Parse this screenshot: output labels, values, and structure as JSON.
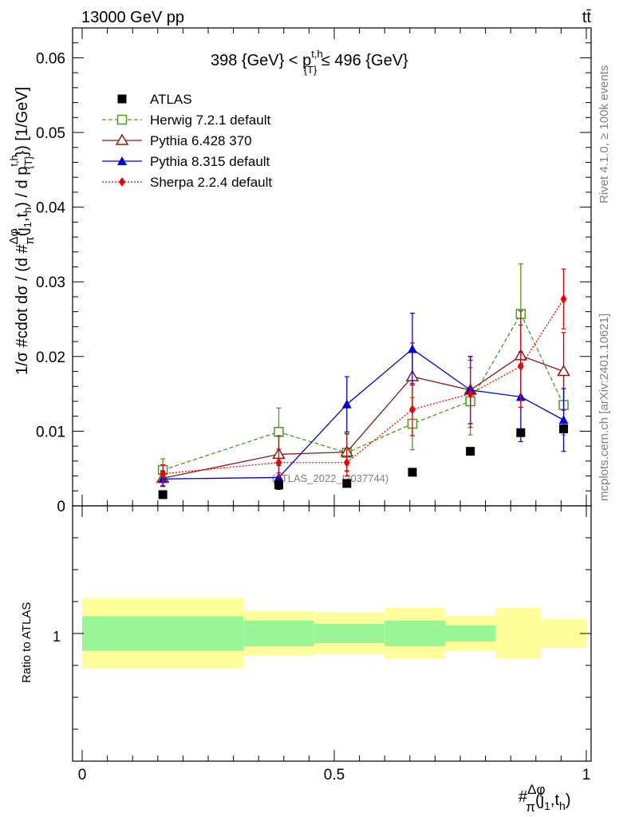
{
  "header": {
    "left": "13000 GeV pp",
    "right": "tt̄",
    "rivet_label": "Rivet 4.1.0, ≥ 100k events",
    "mcplots_label": "mcplots.cern.ch [arXiv:2401.10621]"
  },
  "chart_data": {
    "type": "scatter",
    "title": "398 {GeV} < p_{T}^{t,h} ≤ 496 {GeV}",
    "title_parts": {
      "pre": "398 {GeV} < p",
      "sup": "t,h",
      "sub": "{T}",
      "post": " ≤ 496 {GeV}"
    },
    "ylabel": "1/σ #cdot dσ / (d #Δφ/π(j1,th) / d pT^{t,h}) [1/GeV]",
    "ylabel_parts": {
      "a": "1/σ #cdot dσ / (d #",
      "frac_num": "Δφ",
      "frac_den": "π",
      "b": "(j",
      "b_sub": "1",
      "c": ",t",
      "c_sub": "h",
      "d": ") / d p",
      "d_sup": "t,h",
      "d_sub": "{T}",
      "e": "}) [1/GeV]"
    },
    "xlabel_parts": {
      "pre": "#",
      "frac_num": "Δφ",
      "frac_den": "π",
      "a": "(j",
      "a_sub": "1",
      "b": ",t",
      "b_sub": "h",
      "c": ")"
    },
    "watermark": "(ATLAS_2022_I2037744)",
    "xlim": [
      0,
      1
    ],
    "ylim": [
      0,
      0.064
    ],
    "x_ticks": [
      0,
      0.5,
      1
    ],
    "x_tick_labels": [
      "0",
      "0.5",
      "1"
    ],
    "y_ticks": [
      0,
      0.01,
      0.02,
      0.03,
      0.04,
      0.05,
      0.06
    ],
    "y_tick_labels": [
      "0",
      "0.01",
      "0.02",
      "0.03",
      "0.04",
      "0.05",
      "0.06"
    ],
    "legend_position": "top-left",
    "series": [
      {
        "name": "ATLAS",
        "color": "#000000",
        "marker": "square-filled",
        "line": "none",
        "x": [
          0.16,
          0.39,
          0.525,
          0.655,
          0.77,
          0.87,
          0.955
        ],
        "y": [
          0.0015,
          0.0028,
          0.003,
          0.0045,
          0.0073,
          0.0098,
          0.0103
        ],
        "err": [
          0,
          0,
          0,
          0,
          0,
          0,
          0
        ]
      },
      {
        "name": "Herwig 7.2.1 default",
        "color": "#4c9a16",
        "marker": "square-open",
        "line": "dashed",
        "x": [
          0.16,
          0.39,
          0.525,
          0.655,
          0.77,
          0.87,
          0.955
        ],
        "y": [
          0.0048,
          0.0099,
          0.0071,
          0.011,
          0.014,
          0.0257,
          0.0135
        ],
        "err": [
          0.0015,
          0.0032,
          0.0025,
          0.0035,
          0.0045,
          0.0067,
          0.004
        ]
      },
      {
        "name": "Pythia 6.428 370",
        "color": "#8b1a1a",
        "marker": "triangle-open",
        "line": "solid",
        "x": [
          0.16,
          0.39,
          0.525,
          0.655,
          0.77,
          0.87,
          0.955
        ],
        "y": [
          0.0037,
          0.0069,
          0.0072,
          0.0173,
          0.0155,
          0.0201,
          0.018
        ],
        "err": [
          0.001,
          0.0025,
          0.0025,
          0.0045,
          0.0045,
          0.006,
          0.0052
        ]
      },
      {
        "name": "Pythia 8.315 default",
        "color": "#0000dd",
        "marker": "triangle-filled",
        "line": "solid",
        "x": [
          0.16,
          0.39,
          0.525,
          0.655,
          0.77,
          0.87,
          0.955
        ],
        "y": [
          0.0036,
          0.0038,
          0.0136,
          0.021,
          0.0155,
          0.0146,
          0.0115
        ],
        "err": [
          0.001,
          0.0016,
          0.0037,
          0.0048,
          0.0045,
          0.006,
          0.0042
        ]
      },
      {
        "name": "Sherpa 2.2.4 default",
        "color": "#ee0000",
        "marker": "diamond-filled",
        "line": "dotted",
        "x": [
          0.16,
          0.39,
          0.525,
          0.655,
          0.77,
          0.87,
          0.955
        ],
        "y": [
          0.0043,
          0.0058,
          0.0058,
          0.0129,
          0.015,
          0.0187,
          0.0277
        ],
        "err": [
          0.0012,
          0.0018,
          0.0018,
          0.0035,
          0.0045,
          0.0055,
          0.004
        ]
      }
    ],
    "ratio": {
      "ylabel": "Ratio to ATLAS",
      "y_tick_labels": [
        "1"
      ],
      "ylim": [
        0.6,
        1.4
      ],
      "bins": [
        {
          "x0": 0.0,
          "x1": 0.32,
          "inner": 0.054,
          "outer": 0.11
        },
        {
          "x0": 0.32,
          "x1": 0.46,
          "inner": 0.04,
          "outer": 0.07
        },
        {
          "x0": 0.46,
          "x1": 0.6,
          "inner": 0.03,
          "outer": 0.065
        },
        {
          "x0": 0.6,
          "x1": 0.72,
          "inner": 0.04,
          "outer": 0.08
        },
        {
          "x0": 0.72,
          "x1": 0.82,
          "inner": 0.025,
          "outer": 0.055
        },
        {
          "x0": 0.82,
          "x1": 0.91,
          "inner": 0.0,
          "outer": 0.08
        },
        {
          "x0": 0.91,
          "x1": 1.0,
          "inner": 0.0,
          "outer": 0.045
        }
      ],
      "inner_color": "#98f598",
      "outer_color": "#ffff99"
    }
  }
}
